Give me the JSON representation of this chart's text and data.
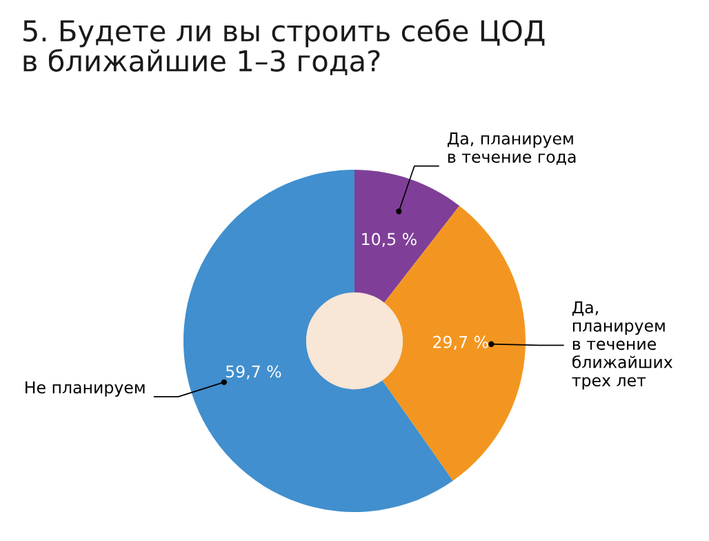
{
  "chart_data": {
    "type": "donut",
    "title": "5. Будете ли вы строить себе ЦОД\nв ближайшие 1–3 года?",
    "categories": [
      "Да, планируем\nв течение года",
      "Да,\nпланируем\nв течение\nближайших\nтрех лет",
      "Не планируем"
    ],
    "values": [
      10.5,
      29.7,
      59.7
    ],
    "value_labels": [
      "10,5 %",
      "29,7 %",
      "59,7 %"
    ],
    "colors": [
      "#7f3f98",
      "#f39621",
      "#418fce"
    ],
    "legend": false
  }
}
